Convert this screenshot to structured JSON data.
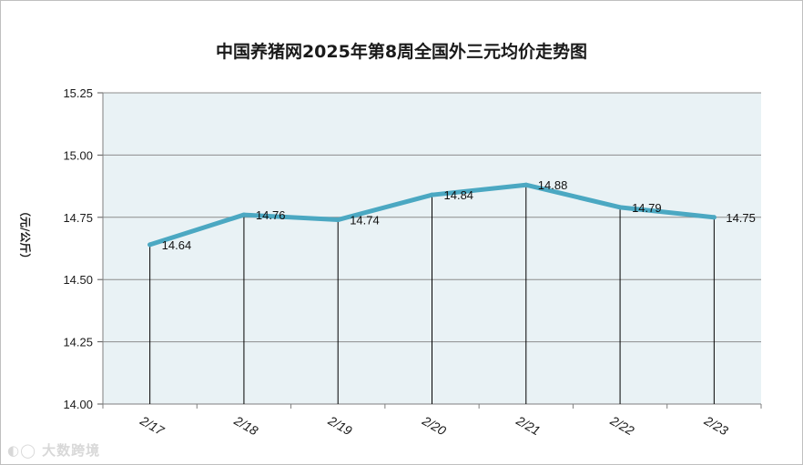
{
  "chart_data": {
    "type": "line",
    "title": "中国养猪网2025年第8周全国外三元均价走势图",
    "ylabel": "（元/公斤）",
    "xlabel": "",
    "categories": [
      "2/17",
      "2/18",
      "2/19",
      "2/20",
      "2/21",
      "2/22",
      "2/23"
    ],
    "series": [
      {
        "values": [
          14.64,
          14.76,
          14.74,
          14.84,
          14.88,
          14.79,
          14.75
        ]
      }
    ],
    "data_labels": [
      "14.64",
      "14.76",
      "14.74",
      "14.84",
      "14.88",
      "14.79",
      "14.75"
    ],
    "yticks": [
      "14.00",
      "14.25",
      "14.50",
      "14.75",
      "15.00",
      "15.25"
    ],
    "ylim": [
      14.0,
      15.25
    ],
    "grid": true,
    "drop_lines": true,
    "colors": {
      "line": "#4ba8c2",
      "plot_bg": "#e9f2f5",
      "grid": "#8c8c8c"
    }
  },
  "watermark": "大数跨境"
}
